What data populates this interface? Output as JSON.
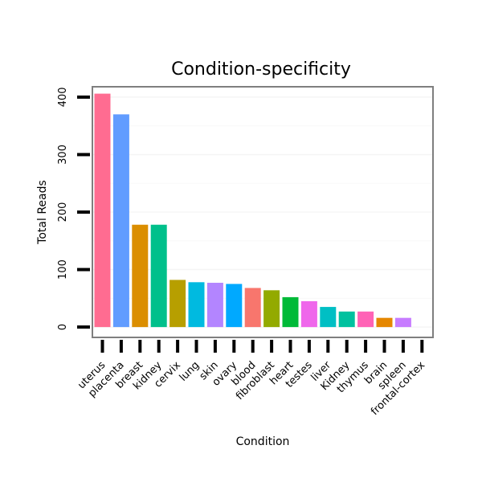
{
  "chart_data": {
    "type": "bar",
    "title": "Condition-specificity",
    "xlabel": "Condition",
    "ylabel": "Total Reads",
    "ylim": [
      -18,
      418
    ],
    "yticks": [
      0,
      100,
      200,
      300,
      400
    ],
    "grid": true,
    "legend": "none",
    "categories": [
      "uterus",
      "placenta",
      "breast",
      "kidney",
      "cervix",
      "lung",
      "skin",
      "ovary",
      "blood",
      "fibroblast",
      "heart",
      "testes",
      "liver",
      "Kidney",
      "thymus",
      "brain",
      "spleen",
      "frontal-cortex"
    ],
    "values": [
      406,
      370,
      178,
      178,
      82,
      78,
      77,
      75,
      68,
      64,
      52,
      45,
      35,
      27,
      27,
      16,
      16,
      0
    ],
    "colors": [
      "#ff6c91",
      "#619cff",
      "#db8e00",
      "#00c08b",
      "#b79f00",
      "#00bae0",
      "#b385ff",
      "#00a9ff",
      "#f8766d",
      "#93aa00",
      "#00ba38",
      "#ef67eb",
      "#00bfc4",
      "#00c19f",
      "#ff63b6",
      "#e58700",
      "#c77cff",
      "#ff6a98"
    ]
  }
}
